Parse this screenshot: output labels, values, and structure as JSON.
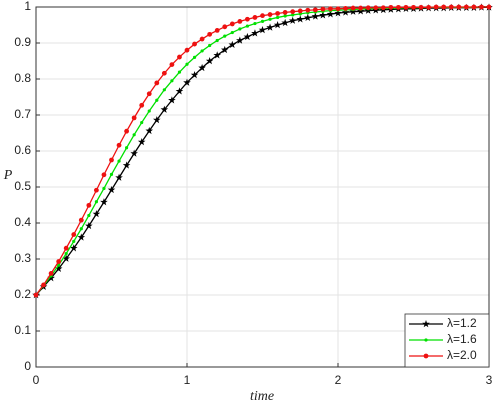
{
  "chart_data": {
    "type": "line",
    "x_label": "time",
    "y_label": "P",
    "x": [
      0,
      0.05,
      0.1,
      0.15,
      0.2,
      0.25,
      0.3,
      0.35,
      0.4,
      0.45,
      0.5,
      0.55,
      0.6,
      0.65,
      0.7,
      0.75,
      0.8,
      0.85,
      0.9,
      0.95,
      1,
      1.05,
      1.1,
      1.15,
      1.2,
      1.25,
      1.3,
      1.35,
      1.4,
      1.45,
      1.5,
      1.55,
      1.6,
      1.65,
      1.7,
      1.75,
      1.8,
      1.85,
      1.9,
      1.95,
      2,
      2.05,
      2.1,
      2.15,
      2.2,
      2.25,
      2.3,
      2.35,
      2.4,
      2.45,
      2.5,
      2.55,
      2.6,
      2.65,
      2.7,
      2.75,
      2.8,
      2.85,
      2.9,
      2.95,
      3
    ],
    "series": [
      {
        "name": "λ=1.2",
        "color": "#000000",
        "marker": "star",
        "values": [
          0.2,
          0.223,
          0.247,
          0.273,
          0.301,
          0.33,
          0.36,
          0.392,
          0.425,
          0.458,
          0.492,
          0.526,
          0.56,
          0.593,
          0.625,
          0.656,
          0.686,
          0.715,
          0.741,
          0.766,
          0.79,
          0.811,
          0.831,
          0.85,
          0.866,
          0.881,
          0.895,
          0.907,
          0.917,
          0.927,
          0.936,
          0.943,
          0.95,
          0.956,
          0.962,
          0.966,
          0.97,
          0.974,
          0.977,
          0.98,
          0.983,
          0.985,
          0.987,
          0.988,
          0.99,
          0.991,
          0.992,
          0.993,
          0.994,
          0.995,
          0.995,
          0.996,
          0.997,
          0.997,
          0.997,
          0.998,
          0.998,
          0.998,
          0.998,
          0.999,
          0.999
        ]
      },
      {
        "name": "λ=1.6",
        "color": "#00e000",
        "marker": "point",
        "values": [
          0.2,
          0.226,
          0.253,
          0.283,
          0.315,
          0.349,
          0.384,
          0.421,
          0.459,
          0.496,
          0.535,
          0.572,
          0.609,
          0.645,
          0.679,
          0.711,
          0.741,
          0.77,
          0.795,
          0.819,
          0.841,
          0.86,
          0.878,
          0.893,
          0.907,
          0.919,
          0.929,
          0.939,
          0.947,
          0.954,
          0.96,
          0.966,
          0.971,
          0.975,
          0.978,
          0.981,
          0.984,
          0.986,
          0.988,
          0.99,
          0.991,
          0.992,
          0.993,
          0.994,
          0.995,
          0.996,
          0.996,
          0.997,
          0.997,
          0.998,
          0.998,
          0.998,
          0.999,
          0.999,
          0.999,
          0.999,
          0.999,
          0.999,
          0.999,
          1,
          1
        ]
      },
      {
        "name": "λ=2.0",
        "color": "#ee1111",
        "marker": "dot",
        "values": [
          0.2,
          0.228,
          0.26,
          0.293,
          0.33,
          0.368,
          0.408,
          0.449,
          0.491,
          0.534,
          0.575,
          0.616,
          0.655,
          0.692,
          0.727,
          0.759,
          0.789,
          0.816,
          0.84,
          0.861,
          0.88,
          0.897,
          0.911,
          0.924,
          0.935,
          0.945,
          0.953,
          0.96,
          0.966,
          0.971,
          0.976,
          0.979,
          0.982,
          0.985,
          0.987,
          0.989,
          0.991,
          0.992,
          0.994,
          0.995,
          0.995,
          0.996,
          0.997,
          0.997,
          0.998,
          0.998,
          0.998,
          0.999,
          0.999,
          0.999,
          0.999,
          0.999,
          0.999,
          1,
          1,
          1,
          1,
          1,
          1,
          1,
          1
        ]
      }
    ],
    "xlim": [
      0,
      3
    ],
    "xticks": [
      0,
      1,
      2,
      3
    ],
    "ylim": [
      0,
      1
    ],
    "yticks": [
      0,
      0.1,
      0.2,
      0.3,
      0.4,
      0.5,
      0.6,
      0.7,
      0.8,
      0.9,
      1
    ],
    "grid": true,
    "legend": "lower right"
  }
}
